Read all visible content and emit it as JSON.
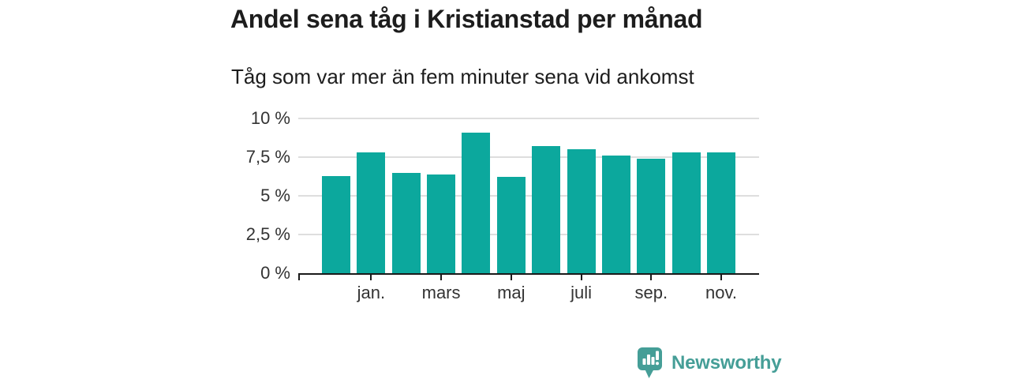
{
  "page": {
    "title": "Andel sena tåg i Kristianstad per månad",
    "subtitle": "Tåg som var mer än fem minuter sena vid ankomst"
  },
  "branding": {
    "name": "Newsworthy"
  },
  "colors": {
    "bar": "#0ca89d",
    "axis": "#1a1a1a",
    "gridline": "#dedede",
    "tick_label": "#333333",
    "text": "#1d1d1d",
    "background": "#ffffff",
    "logo": "#459e97"
  },
  "chart_data": {
    "type": "bar",
    "title": "Andel sena tåg i Kristianstad per månad",
    "subtitle": "Tåg som var mer än fem minuter sena vid ankomst",
    "unit": "%",
    "values": [
      6.3,
      7.8,
      6.5,
      6.4,
      9.1,
      6.2,
      8.2,
      8.0,
      7.6,
      7.4,
      7.8,
      7.8
    ],
    "ylim": [
      0,
      10
    ],
    "y_ticks": [
      {
        "value": 0,
        "label": "0 %"
      },
      {
        "value": 2.5,
        "label": "2,5 %"
      },
      {
        "value": 5,
        "label": "5 %"
      },
      {
        "value": 7.5,
        "label": "7,5 %"
      },
      {
        "value": 10,
        "label": "10 %"
      }
    ],
    "x_ticks": [
      {
        "bar_index": 1,
        "label": "jan."
      },
      {
        "bar_index": 3,
        "label": "mars"
      },
      {
        "bar_index": 5,
        "label": "maj"
      },
      {
        "bar_index": 7,
        "label": "juli"
      },
      {
        "bar_index": 9,
        "label": "sep."
      },
      {
        "bar_index": 11,
        "label": "nov."
      }
    ],
    "grid": true,
    "legend": "none",
    "bar_color": "#0ca89d"
  }
}
